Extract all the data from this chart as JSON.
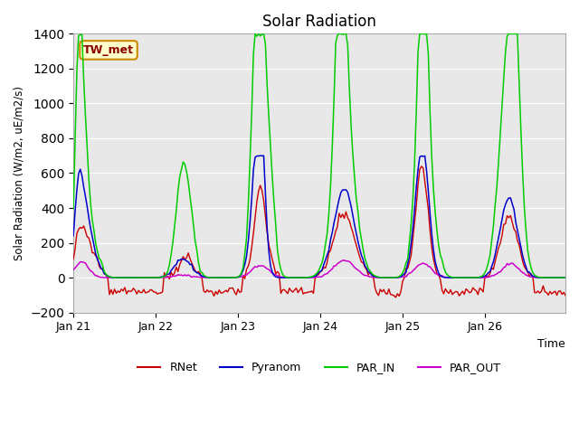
{
  "title": "Solar Radiation",
  "ylabel": "Solar Radiation (W/m2, uE/m2/s)",
  "xlabel": "Time",
  "ylim": [
    -200,
    1400
  ],
  "yticks": [
    -200,
    0,
    200,
    400,
    600,
    800,
    1000,
    1200,
    1400
  ],
  "bg_color": "#e8e8e8",
  "colors": {
    "RNet": "#cc0000",
    "Pyranom": "#0000cc",
    "PAR_IN": "#00cc00",
    "PAR_OUT": "#cc00cc"
  },
  "annotation_text": "TW_met",
  "annotation_bg": "#ffffcc",
  "annotation_border": "#cc8800",
  "annotation_text_color": "#8b0000",
  "x_tick_labels": [
    "Jan 21",
    "Jan 22",
    "Jan 23",
    "Jan 24",
    "Jan 25",
    "Jan 26"
  ],
  "x_tick_positions": [
    0,
    48,
    96,
    144,
    192,
    240
  ]
}
